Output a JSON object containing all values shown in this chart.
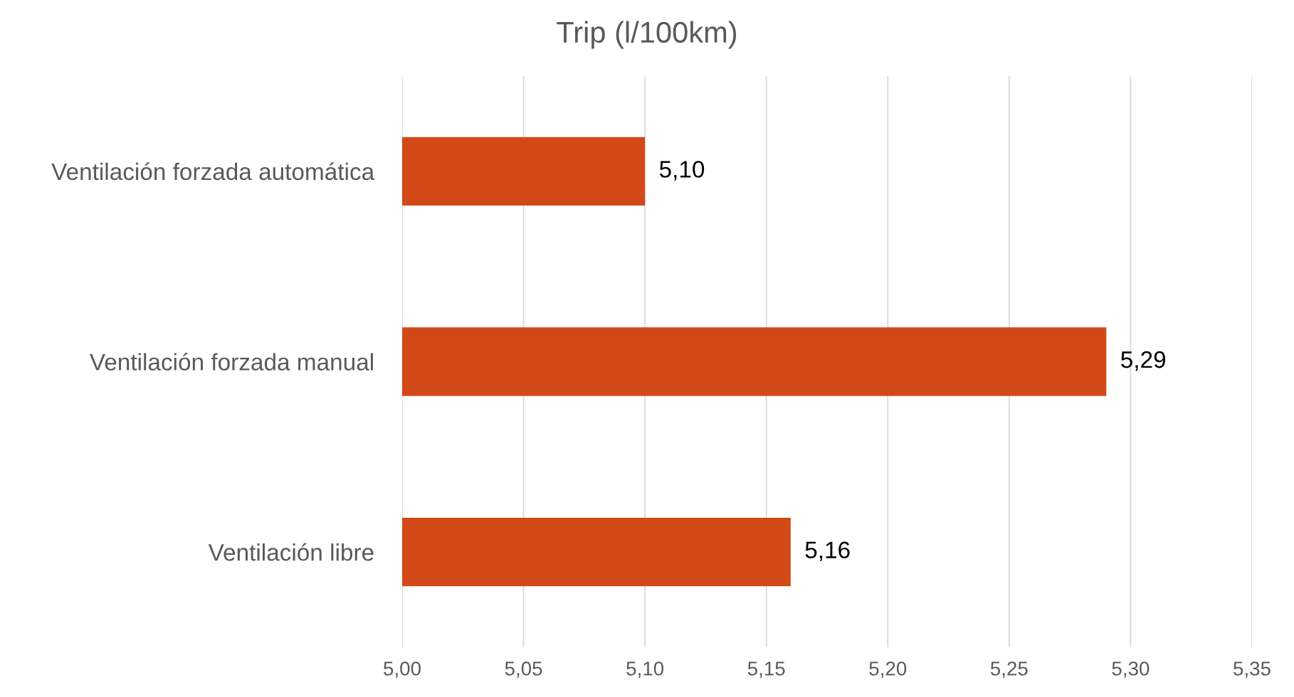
{
  "chart_data": {
    "type": "bar",
    "orientation": "horizontal",
    "title": "Trip (l/100km)",
    "categories": [
      "Ventilación forzada automática",
      "Ventilación forzada manual",
      "Ventilación libre"
    ],
    "values": [
      5.1,
      5.29,
      5.16
    ],
    "value_labels": [
      "5,10",
      "5,29",
      "5,16"
    ],
    "color": "#d34817",
    "xlim": [
      5.0,
      5.35
    ],
    "xticks": [
      {
        "value": 5.0,
        "label": "5,00"
      },
      {
        "value": 5.05,
        "label": "5,05"
      },
      {
        "value": 5.1,
        "label": "5,10"
      },
      {
        "value": 5.15,
        "label": "5,15"
      },
      {
        "value": 5.2,
        "label": "5,20"
      },
      {
        "value": 5.25,
        "label": "5,25"
      },
      {
        "value": 5.3,
        "label": "5,30"
      },
      {
        "value": 5.35,
        "label": "5,35"
      }
    ],
    "grid": "x",
    "legend": false
  }
}
